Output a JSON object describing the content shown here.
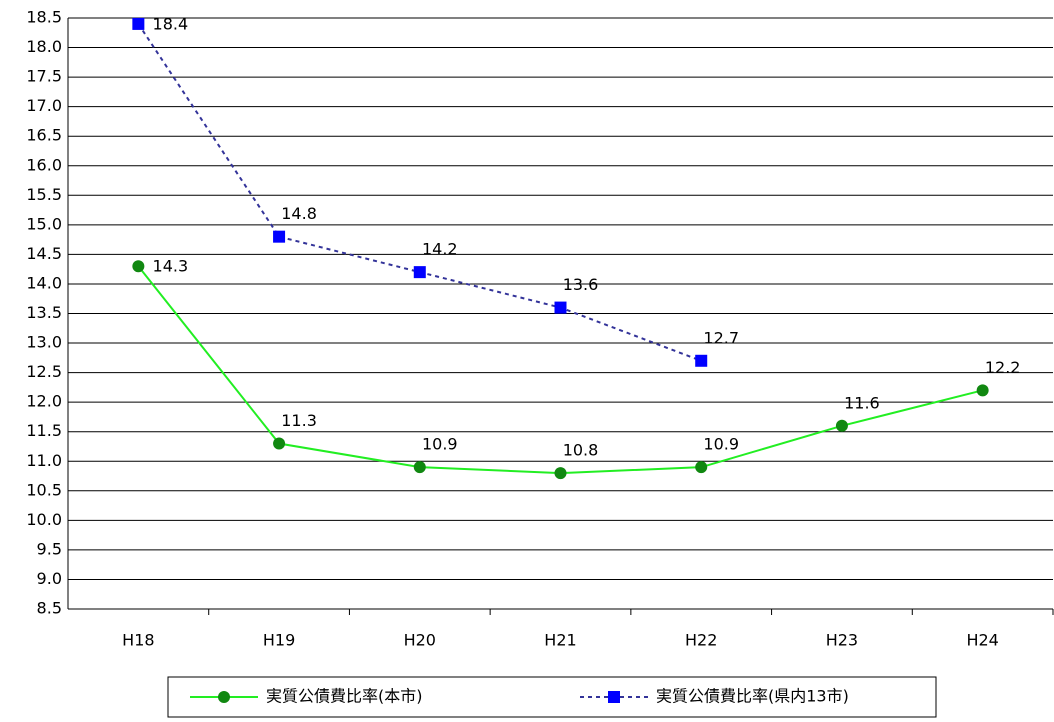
{
  "chart_data": {
    "type": "line",
    "categories": [
      "H18",
      "H19",
      "H20",
      "H21",
      "H22",
      "H23",
      "H24"
    ],
    "series": [
      {
        "name": "実質公債費比率(本市)",
        "color": "#22ee22",
        "marker_color": "#118811",
        "marker": "circle",
        "dashed": false,
        "values": [
          14.3,
          11.3,
          10.9,
          10.8,
          10.9,
          11.6,
          12.2
        ]
      },
      {
        "name": "実質公債費比率(県内13市)",
        "color": "#333399",
        "marker_color": "#0000ff",
        "marker": "square",
        "dashed": true,
        "values": [
          18.4,
          14.8,
          14.2,
          13.6,
          12.7,
          null,
          null
        ]
      }
    ],
    "ylim": [
      8.5,
      18.5
    ],
    "yticks": [
      8.5,
      {
        "value": 9,
        "label": "9.0"
      },
      9.5,
      {
        "value": 10,
        "label": "10.0"
      },
      10.5,
      {
        "value": 11,
        "label": "11.0"
      },
      11.5,
      {
        "value": 12,
        "label": "12.0"
      },
      12.5,
      {
        "value": 13,
        "label": "13.0"
      },
      13.5,
      {
        "value": 14,
        "label": "14.0"
      },
      14.5,
      {
        "value": 15,
        "label": "15.0"
      },
      15.5,
      {
        "value": 16,
        "label": "16.0"
      },
      16.5,
      {
        "value": 17,
        "label": "17.0"
      },
      17.5,
      {
        "value": 18,
        "label": "18.0"
      },
      18.5
    ],
    "grid": true
  }
}
